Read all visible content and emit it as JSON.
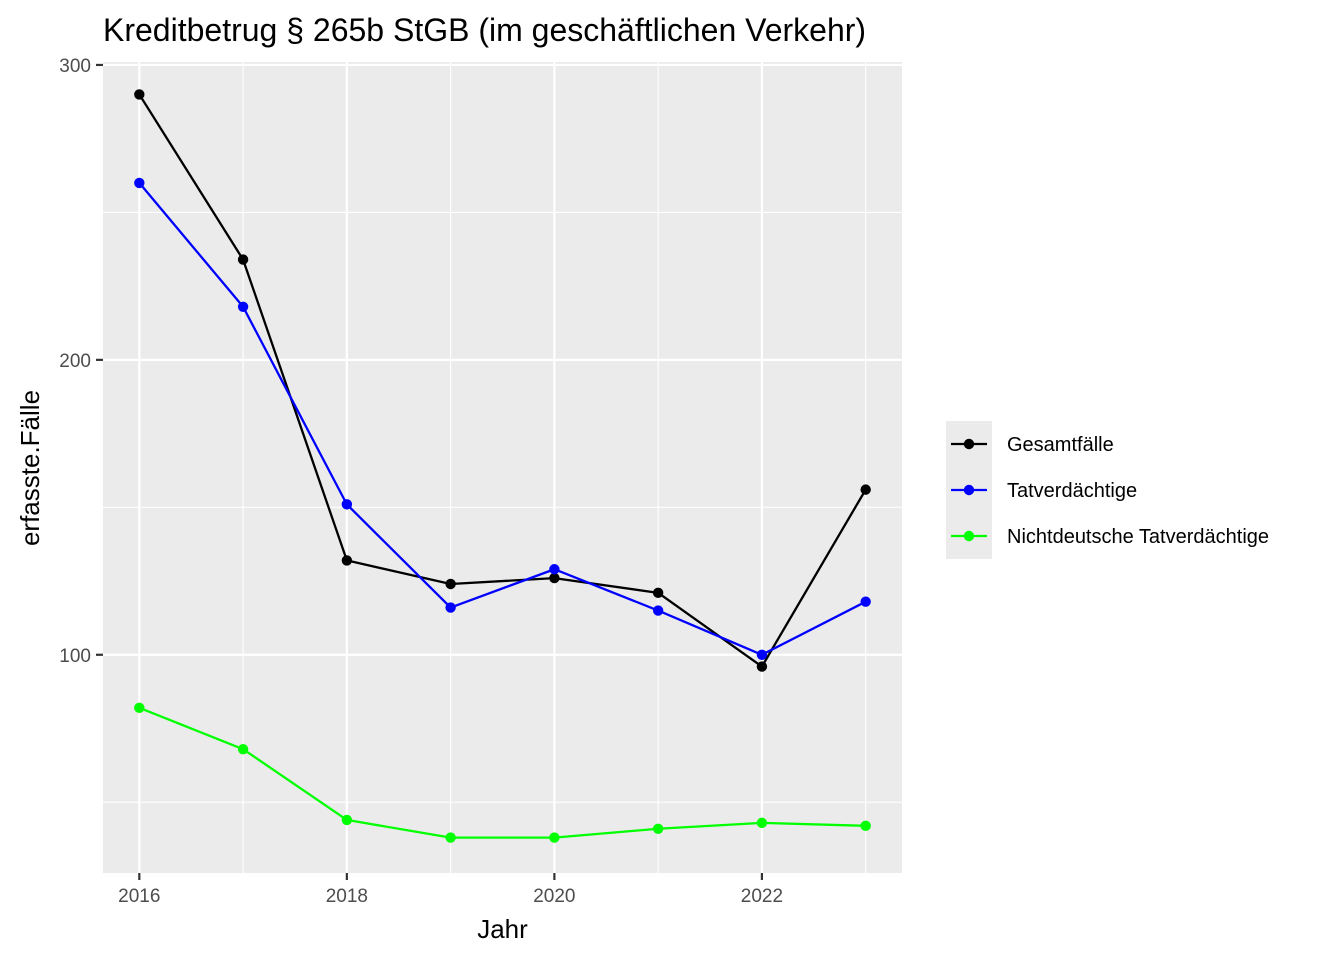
{
  "chart_data": {
    "type": "line",
    "title": "Kreditbetrug § 265b StGB (im geschäftlichen Verkehr)",
    "xlabel": "Jahr",
    "ylabel": "erfasste.Fälle",
    "x": [
      2016,
      2017,
      2018,
      2019,
      2020,
      2021,
      2022,
      2023
    ],
    "x_ticks": [
      2016,
      2018,
      2020,
      2022
    ],
    "x_tick_labels": [
      "2016",
      "2018",
      "2020",
      "2022"
    ],
    "xlim": [
      2015.65,
      2023.35
    ],
    "y_ticks": [
      100,
      200,
      300
    ],
    "y_tick_labels": [
      "100",
      "200",
      "300"
    ],
    "y_minor_ticks": [
      50,
      150,
      250
    ],
    "ylim": [
      26,
      301
    ],
    "grid": true,
    "legend_position": "right",
    "series": [
      {
        "name": "Gesamtfälle",
        "color": "#000000",
        "values": [
          290,
          234,
          132,
          124,
          126,
          121,
          96,
          156
        ]
      },
      {
        "name": "Tatverdächtige",
        "color": "#0000ff",
        "values": [
          260,
          218,
          151,
          116,
          129,
          115,
          100,
          118
        ]
      },
      {
        "name": "Nichtdeutsche Tatverdächtige",
        "color": "#00ff00",
        "values": [
          82,
          68,
          44,
          38,
          38,
          41,
          43,
          42
        ]
      }
    ]
  }
}
